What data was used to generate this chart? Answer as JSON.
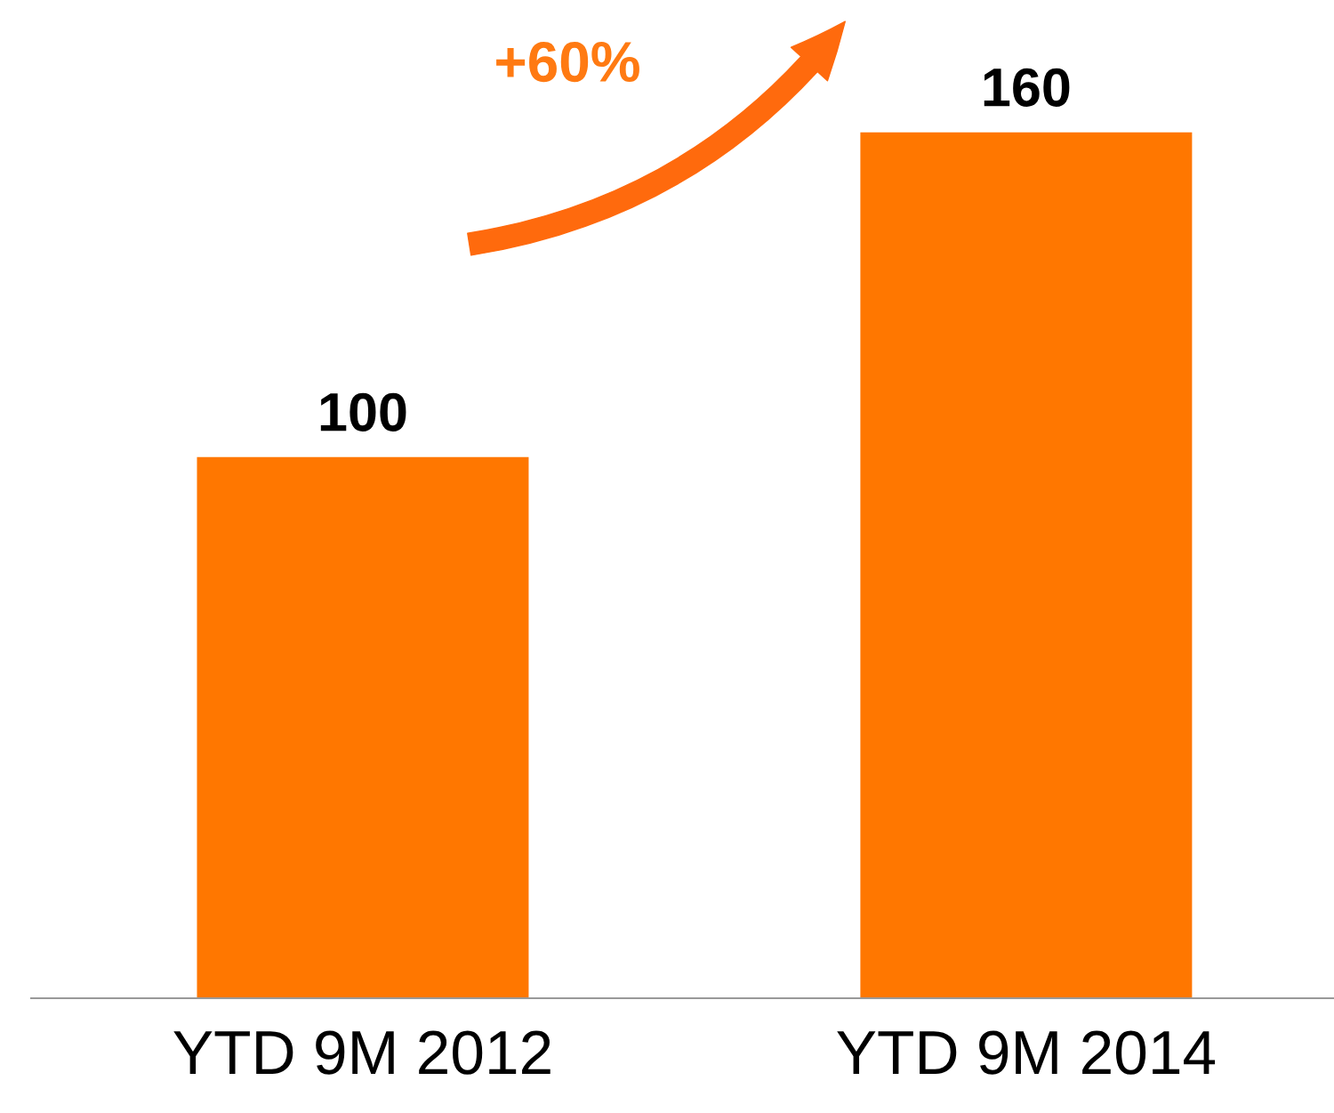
{
  "chart_data": {
    "type": "bar",
    "categories": [
      "YTD 9M 2012",
      "YTD 9M 2014"
    ],
    "values": [
      100,
      160
    ],
    "color": "#ff7700",
    "data_labels": true,
    "annotations": [
      "+60%"
    ]
  }
}
